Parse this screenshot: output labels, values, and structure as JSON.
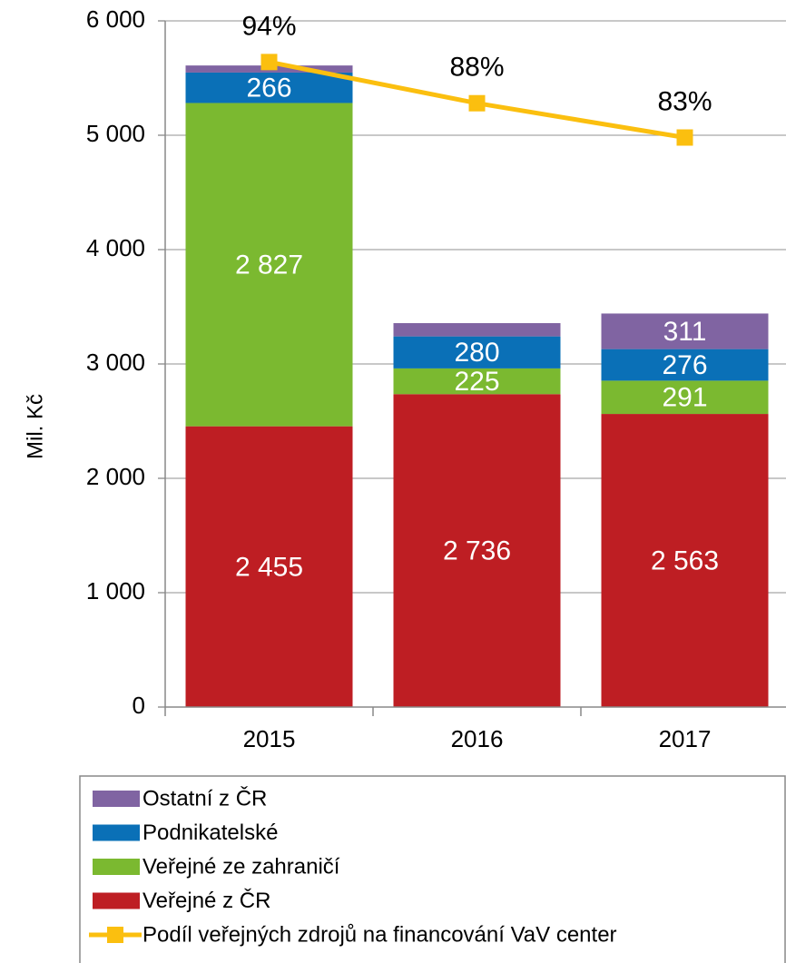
{
  "chart_data": {
    "type": "stacked-bar-line",
    "y_axis_label": "Mil. Kč",
    "categories": [
      "2015",
      "2016",
      "2017"
    ],
    "ylim": [
      0,
      6000
    ],
    "yticks": [
      0,
      {
        "value": 1000,
        "label": "1 000"
      },
      {
        "value": 2000,
        "label": "2 000"
      },
      {
        "value": 3000,
        "label": "3 000"
      },
      {
        "value": 4000,
        "label": "4 000"
      },
      {
        "value": 5000,
        "label": "5 000"
      },
      {
        "value": 6000,
        "label": "6 000"
      }
    ],
    "y2lim": [
      0,
      100
    ],
    "grid": true,
    "legend": "bottom",
    "series": [
      {
        "name": "Veřejné z ČR",
        "color": "#be1e23",
        "values": [
          2455,
          2736,
          2563
        ],
        "value_labels": [
          "2 455",
          "2 736",
          "2 563"
        ]
      },
      {
        "name": "Veřejné ze zahraničí",
        "color": "#7bb930",
        "values": [
          2827,
          225,
          291
        ],
        "value_labels": [
          "2 827",
          "225",
          "291"
        ]
      },
      {
        "name": "Podnikatelské",
        "color": "#0a70b7",
        "values": [
          266,
          280,
          276
        ],
        "value_labels": [
          "266",
          "280",
          "276"
        ]
      },
      {
        "name": "Ostatní z ČR",
        "color": "#8064a2",
        "values": [
          62,
          116,
          311
        ],
        "value_labels": [
          null,
          null,
          "311"
        ]
      },
      {
        "name": "Podíl veřejných zdrojů na financování VaV center",
        "color": "#fbbf0f",
        "type": "line",
        "axis": "y2",
        "values": [
          94,
          88,
          83
        ],
        "value_labels": [
          "94%",
          "88%",
          "83%"
        ]
      }
    ]
  }
}
